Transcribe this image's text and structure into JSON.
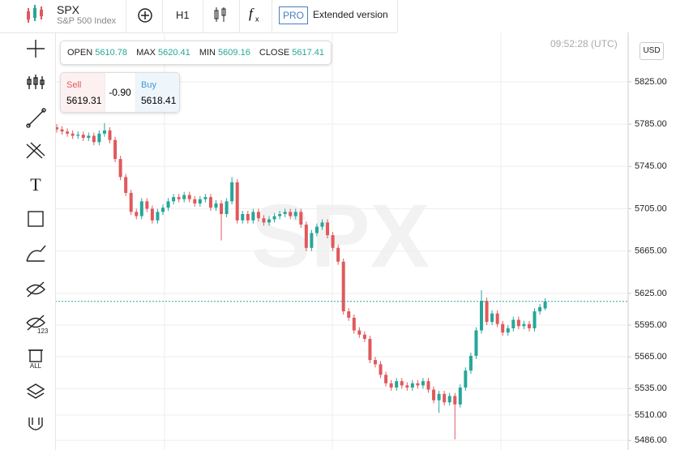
{
  "header": {
    "symbol": "SPX",
    "name": "S&P 500 Index",
    "timeframe": "H1",
    "pro": "PRO",
    "extended": "Extended version"
  },
  "ohlc": {
    "open_label": "OPEN",
    "open": 5610.78,
    "max_label": "MAX",
    "max": 5620.41,
    "min_label": "MIN",
    "min": 5609.16,
    "close_label": "CLOSE",
    "close": 5617.41
  },
  "trade": {
    "sell_label": "Sell",
    "sell": 5619.31,
    "spread": "-0.90",
    "buy_label": "Buy",
    "buy": 5618.41
  },
  "time": "09:52:28 (UTC)",
  "currency": "USD",
  "watermark": "SPX",
  "chart_data": {
    "type": "candlestick",
    "open": [
      5782,
      5780,
      5778,
      5776,
      5774,
      5775,
      5772,
      5774,
      5768,
      5776,
      5779,
      5770,
      5752,
      5735,
      5720,
      5702,
      5698,
      5712,
      5705,
      5694,
      5702,
      5706,
      5712,
      5716,
      5714,
      5718,
      5714,
      5710,
      5714,
      5716,
      5706,
      5710,
      5700,
      5712,
      5730,
      5694,
      5700,
      5694,
      5702,
      5696,
      5692,
      5695,
      5698,
      5700,
      5702,
      5698,
      5702,
      5690,
      5668,
      5682,
      5688,
      5692,
      5680,
      5668,
      5655,
      5608,
      5602,
      5590,
      5586,
      5582,
      5562,
      5558,
      5548,
      5540,
      5536,
      5542,
      5538,
      5536,
      5540,
      5538,
      5542,
      5534,
      5524,
      5530,
      5522,
      5528,
      5520,
      5536,
      5552,
      5566,
      5590,
      5618,
      5598,
      5606,
      5596,
      5588,
      5592,
      5600,
      5594,
      5596,
      5592,
      5608,
      5610.78
    ],
    "high": [
      5785,
      5783,
      5781,
      5779,
      5778,
      5778,
      5777,
      5777,
      5779,
      5786,
      5782,
      5773,
      5755,
      5738,
      5723,
      5705,
      5715,
      5715,
      5708,
      5705,
      5709,
      5715,
      5719,
      5719,
      5721,
      5721,
      5717,
      5717,
      5719,
      5719,
      5713,
      5713,
      5715,
      5735,
      5733,
      5703,
      5703,
      5705,
      5705,
      5699,
      5698,
      5701,
      5703,
      5705,
      5705,
      5705,
      5705,
      5693,
      5685,
      5691,
      5695,
      5695,
      5683,
      5671,
      5658,
      5611,
      5605,
      5593,
      5589,
      5585,
      5565,
      5561,
      5551,
      5543,
      5545,
      5545,
      5541,
      5543,
      5543,
      5545,
      5545,
      5537,
      5533,
      5533,
      5531,
      5531,
      5539,
      5555,
      5569,
      5593,
      5628,
      5621,
      5609,
      5609,
      5599,
      5595,
      5603,
      5603,
      5599,
      5599,
      5611,
      5615,
      5620.41
    ],
    "low": [
      5777,
      5775,
      5773,
      5771,
      5771,
      5769,
      5769,
      5765,
      5765,
      5773,
      5767,
      5749,
      5732,
      5717,
      5699,
      5695,
      5695,
      5702,
      5691,
      5691,
      5699,
      5703,
      5709,
      5711,
      5711,
      5711,
      5707,
      5707,
      5711,
      5703,
      5703,
      5675,
      5697,
      5709,
      5691,
      5691,
      5691,
      5691,
      5693,
      5689,
      5689,
      5692,
      5695,
      5697,
      5695,
      5695,
      5687,
      5665,
      5665,
      5679,
      5685,
      5677,
      5665,
      5652,
      5605,
      5599,
      5587,
      5583,
      5579,
      5559,
      5555,
      5545,
      5537,
      5533,
      5533,
      5535,
      5533,
      5533,
      5535,
      5535,
      5531,
      5521,
      5512,
      5519,
      5519,
      5487,
      5517,
      5533,
      5549,
      5563,
      5587,
      5595,
      5595,
      5593,
      5585,
      5585,
      5589,
      5591,
      5591,
      5589,
      5589,
      5605,
      5609.16
    ],
    "close": [
      5780,
      5778,
      5776,
      5774,
      5775,
      5772,
      5774,
      5768,
      5776,
      5779,
      5770,
      5752,
      5735,
      5720,
      5702,
      5698,
      5712,
      5705,
      5694,
      5702,
      5706,
      5712,
      5716,
      5714,
      5718,
      5714,
      5710,
      5714,
      5716,
      5706,
      5710,
      5700,
      5712,
      5730,
      5694,
      5700,
      5694,
      5702,
      5696,
      5692,
      5695,
      5698,
      5700,
      5702,
      5698,
      5702,
      5690,
      5668,
      5682,
      5688,
      5692,
      5680,
      5668,
      5655,
      5608,
      5602,
      5590,
      5586,
      5582,
      5562,
      5558,
      5548,
      5540,
      5536,
      5542,
      5538,
      5536,
      5540,
      5538,
      5542,
      5534,
      5524,
      5530,
      5522,
      5528,
      5520,
      5536,
      5552,
      5566,
      5590,
      5618,
      5598,
      5606,
      5596,
      5588,
      5592,
      5600,
      5594,
      5596,
      5592,
      5608,
      5612,
      5617.41
    ],
    "ylim": [
      5477,
      5864
    ],
    "yticks": [
      {
        "value": 5825,
        "label": "5825.00"
      },
      {
        "value": 5785,
        "label": "5785.00"
      },
      {
        "value": 5745,
        "label": "5745.00"
      },
      {
        "value": 5705,
        "label": "5705.00"
      },
      {
        "value": 5665,
        "label": "5665.00"
      },
      {
        "value": 5625,
        "label": "5625.00"
      },
      {
        "value": 5595,
        "label": "5595.00"
      },
      {
        "value": 5565,
        "label": "5565.00"
      },
      {
        "value": 5535,
        "label": "5535.00"
      },
      {
        "value": 5510,
        "label": "5510.00"
      },
      {
        "value": 5486,
        "label": "5486.00"
      }
    ],
    "up_color": "#26a69a",
    "down_color": "#e0595c",
    "grid": true
  }
}
